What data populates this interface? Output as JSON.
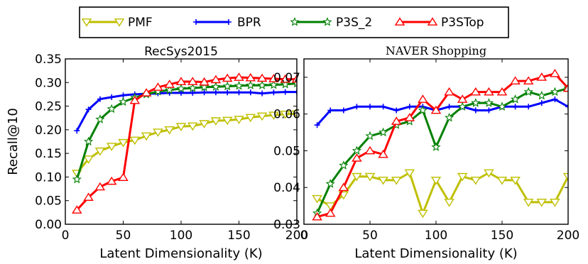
{
  "legend": {
    "entries": [
      {
        "name": "PMF",
        "color": "#bfbf00",
        "marker": "triangle-down"
      },
      {
        "name": "BPR",
        "color": "#0000ff",
        "marker": "tri"
      },
      {
        "name": "P3S_2",
        "color": "#008000",
        "marker": "star"
      },
      {
        "name": "P3STop",
        "color": "#ff0000",
        "marker": "triangle-up"
      }
    ]
  },
  "chart_data": [
    {
      "type": "line",
      "title": "RecSys2015",
      "xlabel": "Latent Dimensionality (K)",
      "ylabel": "Recall@10",
      "xlim": [
        0,
        200
      ],
      "ylim": [
        0,
        0.35
      ],
      "xticks": [
        "0",
        "50",
        "100",
        "150",
        "200"
      ],
      "yticks": [
        "0.00",
        "0.05",
        "0.10",
        "0.15",
        "0.20",
        "0.25",
        "0.30",
        "0.35"
      ],
      "grid": false,
      "x": [
        10,
        20,
        30,
        40,
        50,
        60,
        70,
        80,
        90,
        100,
        110,
        120,
        130,
        140,
        150,
        160,
        170,
        180,
        190,
        200
      ],
      "series": [
        {
          "name": "PMF",
          "values": [
            0.108,
            0.138,
            0.155,
            0.165,
            0.173,
            0.178,
            0.187,
            0.195,
            0.2,
            0.207,
            0.208,
            0.213,
            0.219,
            0.22,
            0.222,
            0.226,
            0.229,
            0.231,
            0.233,
            0.234
          ]
        },
        {
          "name": "BPR",
          "values": [
            0.198,
            0.243,
            0.265,
            0.269,
            0.273,
            0.275,
            0.276,
            0.277,
            0.278,
            0.278,
            0.278,
            0.279,
            0.279,
            0.279,
            0.279,
            0.279,
            0.277,
            0.279,
            0.28,
            0.28
          ]
        },
        {
          "name": "P3S_2",
          "values": [
            0.095,
            0.175,
            0.222,
            0.244,
            0.259,
            0.268,
            0.275,
            0.281,
            0.284,
            0.287,
            0.288,
            0.29,
            0.291,
            0.292,
            0.293,
            0.294,
            0.294,
            0.295,
            0.296,
            0.298
          ]
        },
        {
          "name": "P3STop",
          "values": [
            0.03,
            0.057,
            0.079,
            0.091,
            0.099,
            0.262,
            0.278,
            0.29,
            0.296,
            0.302,
            0.302,
            0.301,
            0.306,
            0.309,
            0.311,
            0.31,
            0.309,
            0.308,
            0.307,
            0.307
          ]
        }
      ]
    },
    {
      "type": "line",
      "title": "NAVER Shopping",
      "xlabel": "Latent Dimensionality (K)",
      "ylabel": "",
      "xlim": [
        0,
        200
      ],
      "ylim": [
        0.03,
        0.075
      ],
      "xticks": [
        "0",
        "50",
        "100",
        "150",
        "200"
      ],
      "yticks": [
        "0.03",
        "0.04",
        "0.05",
        "0.06",
        "0.07"
      ],
      "grid": false,
      "x": [
        10,
        20,
        30,
        40,
        50,
        60,
        70,
        80,
        90,
        100,
        110,
        120,
        130,
        140,
        150,
        160,
        170,
        180,
        190,
        200
      ],
      "series": [
        {
          "name": "PMF",
          "values": [
            0.037,
            0.035,
            0.038,
            0.043,
            0.043,
            0.042,
            0.042,
            0.044,
            0.033,
            0.042,
            0.036,
            0.043,
            0.042,
            0.044,
            0.042,
            0.042,
            0.036,
            0.036,
            0.036,
            0.043
          ]
        },
        {
          "name": "BPR",
          "values": [
            0.057,
            0.061,
            0.061,
            0.062,
            0.062,
            0.062,
            0.061,
            0.062,
            0.062,
            0.061,
            0.062,
            0.062,
            0.061,
            0.061,
            0.062,
            0.062,
            0.062,
            0.063,
            0.064,
            0.062
          ]
        },
        {
          "name": "P3S_2",
          "values": [
            0.033,
            0.041,
            0.046,
            0.05,
            0.054,
            0.055,
            0.057,
            0.058,
            0.061,
            0.051,
            0.059,
            0.062,
            0.063,
            0.063,
            0.062,
            0.064,
            0.066,
            0.065,
            0.066,
            0.067
          ]
        },
        {
          "name": "P3STop",
          "values": [
            0.032,
            0.033,
            0.04,
            0.048,
            0.05,
            0.049,
            0.058,
            0.059,
            0.064,
            0.061,
            0.066,
            0.064,
            0.066,
            0.066,
            0.066,
            0.069,
            0.069,
            0.07,
            0.071,
            0.067
          ]
        }
      ]
    }
  ]
}
